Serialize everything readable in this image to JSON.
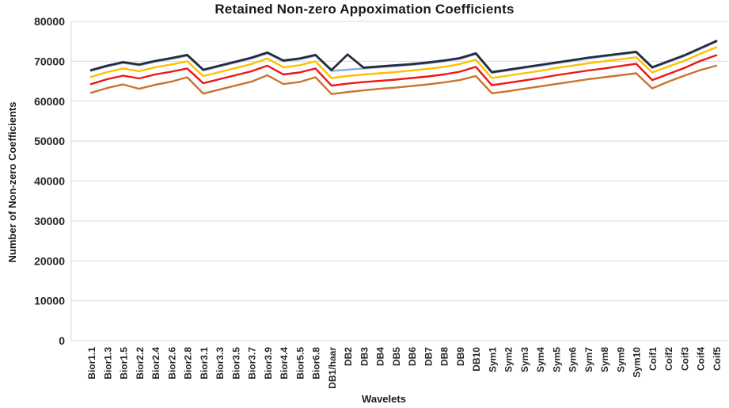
{
  "chart_data": {
    "type": "line",
    "title": "Retained Non-zero Appoximation Coefficients",
    "xlabel": "Wavelets",
    "ylabel": "Number of Non-zero Coefficients",
    "ylim": [
      0,
      80000
    ],
    "ytick_step": 10000,
    "grid": true,
    "legend": "none",
    "categories": [
      "Bior1.1",
      "Bior1.3",
      "Bior1.5",
      "Bior2.2",
      "Bior2.4",
      "Bior2.6",
      "Bior2.8",
      "Bior3.1",
      "Bior3.3",
      "Bior3.5",
      "Bior3.7",
      "Bior3.9",
      "Bior4.4",
      "Bior5.5",
      "Bior6.8",
      "DB1/haar",
      "DB2",
      "DB3",
      "DB4",
      "DB5",
      "DB6",
      "DB7",
      "DB8",
      "DB9",
      "DB10",
      "Sym1",
      "Sym2",
      "Sym3",
      "Sym4",
      "Sym5",
      "Sym6",
      "Sym7",
      "Sym8",
      "Sym9",
      "Sym10",
      "Coif1",
      "Coif2",
      "Coif3",
      "Coif4",
      "Coif5"
    ],
    "series": [
      {
        "name": "series-light-blue",
        "color": "#8FAADC",
        "width": 2.4,
        "values": [
          67600,
          68700,
          69600,
          69000,
          69900,
          70600,
          71400,
          67700,
          68700,
          69700,
          70700,
          72000,
          70000,
          70500,
          71400,
          67600,
          67900,
          68200,
          68500,
          68800,
          69100,
          69500,
          70000,
          70600,
          71800,
          67100,
          67700,
          68300,
          68900,
          69500,
          70100,
          70700,
          71200,
          71700,
          72200,
          68300,
          69800,
          71300,
          73100,
          74900
        ]
      },
      {
        "name": "series-gold",
        "color": "#FFC000",
        "width": 2.4,
        "values": [
          66100,
          67300,
          68200,
          67500,
          68500,
          69200,
          70000,
          66300,
          67300,
          68300,
          69300,
          70700,
          68500,
          69000,
          70000,
          65800,
          66300,
          66700,
          67000,
          67300,
          67700,
          68100,
          68600,
          69300,
          70400,
          65800,
          66400,
          67000,
          67600,
          68300,
          68900,
          69500,
          70000,
          70500,
          71000,
          67200,
          68700,
          70100,
          71900,
          73500
        ]
      },
      {
        "name": "series-red",
        "color": "#F01414",
        "width": 2.4,
        "values": [
          64300,
          65500,
          66400,
          65700,
          66700,
          67400,
          68200,
          64500,
          65500,
          66500,
          67500,
          68900,
          66700,
          67200,
          68200,
          63900,
          64400,
          64800,
          65100,
          65400,
          65800,
          66200,
          66700,
          67400,
          68600,
          64000,
          64600,
          65200,
          65800,
          66500,
          67100,
          67700,
          68200,
          68800,
          69400,
          65300,
          66800,
          68300,
          70100,
          71500
        ]
      },
      {
        "name": "series-orange-brown",
        "color": "#C9742E",
        "width": 2.4,
        "values": [
          62100,
          63300,
          64200,
          63100,
          64100,
          64900,
          66000,
          61900,
          62900,
          63900,
          64900,
          66500,
          64300,
          64800,
          66000,
          61800,
          62300,
          62700,
          63100,
          63400,
          63800,
          64200,
          64700,
          65300,
          66300,
          62000,
          62500,
          63100,
          63700,
          64300,
          64900,
          65500,
          66000,
          66500,
          67000,
          63200,
          64900,
          66400,
          67800,
          68900
        ]
      },
      {
        "name": "series-dark-navy",
        "color": "#232A3B",
        "width": 2.7,
        "values": [
          67800,
          68900,
          69800,
          69200,
          70100,
          70800,
          71600,
          67900,
          68900,
          69900,
          70900,
          72200,
          70200,
          70700,
          71600,
          67800,
          71700,
          68400,
          68700,
          69000,
          69300,
          69700,
          70200,
          70800,
          72000,
          67300,
          67900,
          68500,
          69100,
          69700,
          70300,
          70900,
          71400,
          71900,
          72400,
          68500,
          70000,
          71500,
          73300,
          75100
        ]
      }
    ]
  },
  "colors": {
    "grid": "#D9D9D9",
    "axis": "#D9D9D9",
    "tick_text": "#262626",
    "title_text": "#1A1A1A"
  }
}
